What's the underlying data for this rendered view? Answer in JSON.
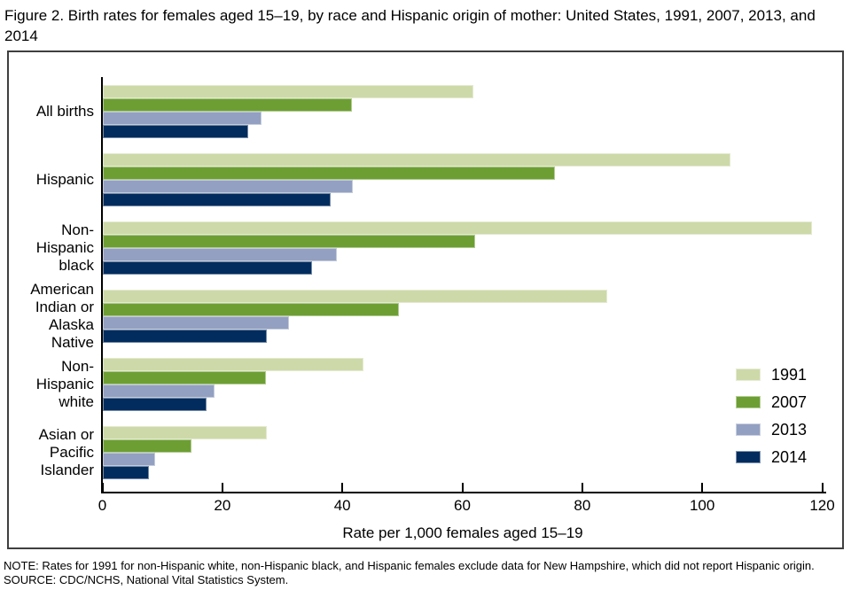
{
  "header": {
    "title_line1": "Figure 2. Birth rates for females aged 15–19, by race and Hispanic origin of mother: United States, 1991, 2007, 2013, and",
    "title_line2": "2014"
  },
  "chart_data": {
    "type": "bar",
    "orientation": "horizontal",
    "title": "Figure 2. Birth rates for females aged 15–19, by race and Hispanic origin of mother: United States, 1991, 2007, 2013, and 2014",
    "categories": [
      "All births",
      "Hispanic",
      "Non-Hispanic black",
      "American Indian or Alaska Native",
      "Non-Hispanic white",
      "Asian or Pacific Islander"
    ],
    "category_label_lines": [
      [
        "All births"
      ],
      [
        "Hispanic"
      ],
      [
        "Non-",
        "Hispanic",
        "black"
      ],
      [
        "American",
        "Indian or",
        "Alaska",
        "Native"
      ],
      [
        "Non-",
        "Hispanic",
        "white"
      ],
      [
        "Asian or",
        "Pacific",
        "Islander"
      ]
    ],
    "series": [
      {
        "name": "1991",
        "color": "#cdd9a8",
        "values": [
          61.8,
          104.6,
          118.2,
          84.1,
          43.4,
          27.3
        ]
      },
      {
        "name": "2007",
        "color": "#6d9e34",
        "values": [
          41.5,
          75.3,
          62.0,
          49.3,
          27.2,
          14.8
        ]
      },
      {
        "name": "2013",
        "color": "#93a0c1",
        "values": [
          26.5,
          41.7,
          39.0,
          31.1,
          18.6,
          8.7
        ]
      },
      {
        "name": "2014",
        "color": "#032c5e",
        "values": [
          24.2,
          38.0,
          34.9,
          27.4,
          17.3,
          7.7
        ]
      }
    ],
    "xlabel": "Rate per 1,000 females aged 15–19",
    "ylabel": "",
    "xlim": [
      0,
      120
    ],
    "xticks": [
      0,
      20,
      40,
      60,
      80,
      100,
      120
    ],
    "grid": false,
    "legend_position": "right"
  },
  "footer": {
    "note": "NOTE: Rates for 1991 for non-Hispanic white, non-Hispanic black, and Hispanic females exclude data for New Hampshire, which did not report Hispanic origin.",
    "source": "SOURCE: CDC/NCHS, National Vital Statistics System."
  }
}
